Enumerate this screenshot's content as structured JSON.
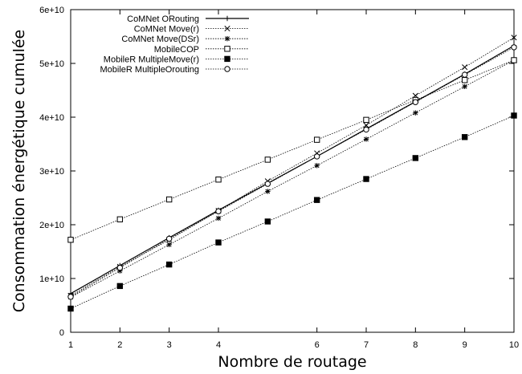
{
  "chart_data": {
    "type": "line",
    "xlabel": "Nombre de routage",
    "ylabel": "Consommation énergétique cumulée",
    "xlim": [
      1,
      10
    ],
    "ylim": [
      0,
      60000000000
    ],
    "x_ticks": [
      1,
      2,
      3,
      4,
      6,
      7,
      8,
      9,
      10
    ],
    "y_ticks": [
      0,
      10000000000,
      20000000000,
      30000000000,
      40000000000,
      50000000000,
      60000000000
    ],
    "x_tick_labels": [
      "1",
      "2",
      "3",
      "4",
      "6",
      "7",
      "8",
      "9",
      "10"
    ],
    "y_tick_labels": [
      "0",
      "1e+10",
      "2e+10",
      "3e+10",
      "4e+10",
      "5e+10",
      "6e+10"
    ],
    "grid": false,
    "legend_position": "top-left",
    "series": [
      {
        "name": "CoMNet ORouting",
        "marker": "plus",
        "dash": "solid",
        "x": [
          1,
          2,
          3,
          4,
          5,
          6,
          7,
          8,
          9,
          10
        ],
        "y": [
          7200000000,
          12400000000,
          17600000000,
          22700000000,
          27700000000,
          32700000000,
          37800000000,
          42900000000,
          48000000000,
          53300000000
        ]
      },
      {
        "name": "CoMNet Move(r)",
        "marker": "cross",
        "dash": "dotted",
        "x": [
          1,
          2,
          3,
          4,
          5,
          6,
          7,
          8,
          9,
          10
        ],
        "y": [
          6800000000,
          12200000000,
          17200000000,
          22600000000,
          28100000000,
          33300000000,
          38500000000,
          44000000000,
          49300000000,
          54800000000
        ]
      },
      {
        "name": "CoMNet Move(DSr)",
        "marker": "asterisk",
        "dash": "dotted",
        "x": [
          1,
          2,
          3,
          4,
          5,
          6,
          7,
          8,
          9,
          10
        ],
        "y": [
          6500000000,
          11400000000,
          16300000000,
          21200000000,
          26200000000,
          31000000000,
          35900000000,
          40800000000,
          45700000000,
          50600000000
        ]
      },
      {
        "name": "MobileCOP",
        "marker": "square-open",
        "dash": "dotted",
        "x": [
          1,
          2,
          3,
          4,
          5,
          6,
          7,
          8,
          9,
          10
        ],
        "y": [
          17200000000,
          21000000000,
          24700000000,
          28400000000,
          32100000000,
          35800000000,
          39500000000,
          43200000000,
          46900000000,
          50600000000
        ]
      },
      {
        "name": "MobileR MultipleMove(r)",
        "marker": "square-filled",
        "dash": "dotted",
        "x": [
          1,
          2,
          3,
          4,
          5,
          6,
          7,
          8,
          9,
          10
        ],
        "y": [
          4400000000,
          8600000000,
          12600000000,
          16700000000,
          20600000000,
          24600000000,
          28500000000,
          32400000000,
          36300000000,
          40300000000
        ]
      },
      {
        "name": "MobileR MultipleOrouting",
        "marker": "circle-open",
        "dash": "dotted",
        "x": [
          1,
          2,
          3,
          4,
          5,
          6,
          7,
          8,
          9,
          10
        ],
        "y": [
          6600000000,
          12000000000,
          17400000000,
          22500000000,
          27600000000,
          32700000000,
          37700000000,
          42800000000,
          47900000000,
          53000000000
        ]
      }
    ]
  }
}
